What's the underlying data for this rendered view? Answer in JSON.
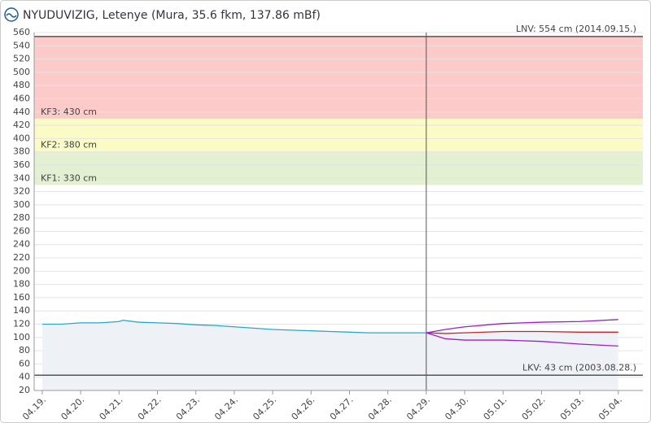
{
  "chart_data": {
    "type": "line",
    "title": "NYUDUVIZIG, Letenye (Mura, 35.6 fkm, 137.86 mBf)",
    "ylim": [
      20,
      560
    ],
    "yticks": [
      20,
      40,
      60,
      80,
      100,
      120,
      140,
      160,
      180,
      200,
      220,
      240,
      260,
      280,
      300,
      320,
      340,
      360,
      380,
      400,
      420,
      440,
      460,
      480,
      500,
      520,
      540,
      560
    ],
    "xlim": [
      -0.21,
      15.64
    ],
    "xticks": [
      {
        "value": 0,
        "label": "04.19."
      },
      {
        "value": 1,
        "label": "04.20."
      },
      {
        "value": 2,
        "label": "04.21."
      },
      {
        "value": 3,
        "label": "04.22."
      },
      {
        "value": 4,
        "label": "04.23."
      },
      {
        "value": 5,
        "label": "04.24."
      },
      {
        "value": 6,
        "label": "04.25."
      },
      {
        "value": 7,
        "label": "04.26."
      },
      {
        "value": 8,
        "label": "04.27."
      },
      {
        "value": 9,
        "label": "04.28."
      },
      {
        "value": 10,
        "label": "04.29."
      },
      {
        "value": 11,
        "label": "04.30."
      },
      {
        "value": 12,
        "label": "05.01."
      },
      {
        "value": 13,
        "label": "05.02."
      },
      {
        "value": 14,
        "label": "05.03."
      },
      {
        "value": 15,
        "label": "05.04."
      }
    ],
    "grid": true,
    "bands": [
      {
        "from": 330,
        "to": 380,
        "color": "#e3f0d2",
        "label": "KF1: 330 cm"
      },
      {
        "from": 380,
        "to": 430,
        "color": "#fbfbc6",
        "label": "KF2: 380 cm"
      },
      {
        "from": 430,
        "to": 554,
        "color": "#fdcaca",
        "label": "KF3: 430 cm"
      }
    ],
    "reference_lines": [
      {
        "value": 554,
        "label": "LNV: 554 cm (2014.09.15.)"
      },
      {
        "value": 43,
        "label": "LKV: 43 cm (2003.08.28.)"
      }
    ],
    "now_x": 10,
    "series": [
      {
        "color": "#2aa6cc",
        "fill": true,
        "x": [
          0,
          0.5,
          1,
          1.5,
          2,
          2.1,
          2.5,
          3,
          3.5,
          4,
          4.5,
          5,
          5.5,
          6,
          6.5,
          7,
          7.5,
          8,
          8.5,
          9,
          9.5,
          10
        ],
        "values": [
          120,
          120,
          122,
          122,
          124,
          126,
          123,
          122,
          121,
          119,
          118,
          116,
          114,
          112,
          111,
          110,
          109,
          108,
          107,
          107,
          107,
          107
        ]
      },
      {
        "color": "#c0262d",
        "x": [
          10,
          10.5,
          11,
          12,
          13,
          14,
          15
        ],
        "values": [
          107,
          106,
          107,
          109,
          109,
          108,
          108
        ]
      },
      {
        "color": "#9b1fc8",
        "x": [
          10,
          10.5,
          11,
          12,
          13,
          14,
          15
        ],
        "values": [
          107,
          112,
          116,
          121,
          123,
          124,
          127
        ]
      },
      {
        "color": "#9b1fc8",
        "x": [
          10,
          10.5,
          11,
          12,
          13,
          14,
          15
        ],
        "values": [
          107,
          98,
          96,
          96,
          94,
          90,
          87
        ]
      }
    ]
  }
}
